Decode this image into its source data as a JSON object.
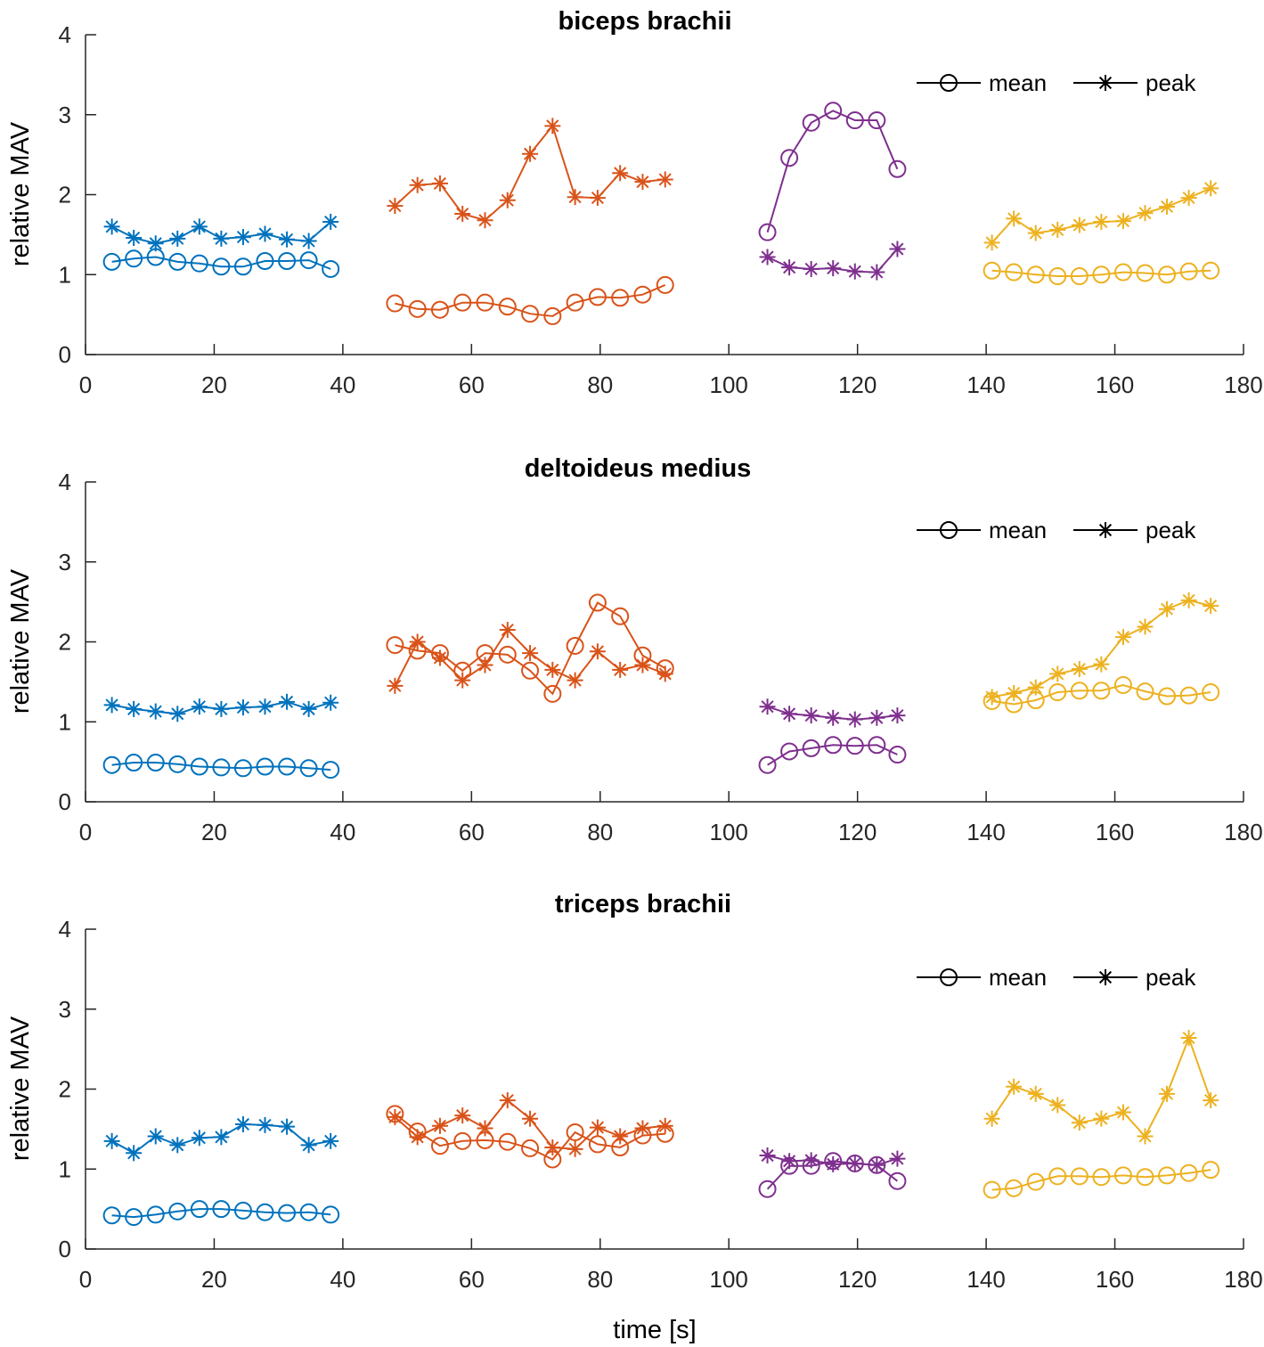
{
  "chart_data": {
    "type": "line",
    "xlabel": "time [s]",
    "xlim": [
      0,
      180
    ],
    "xticks": [
      0,
      20,
      40,
      60,
      80,
      100,
      120,
      140,
      160,
      180
    ],
    "ylim": [
      0,
      4
    ],
    "yticks": [
      0,
      1,
      2,
      3,
      4
    ],
    "segment_colors": [
      "#0072BD",
      "#D95319",
      "#7E2F8E",
      "#EDB120"
    ],
    "legend": {
      "position": "top-right",
      "entries": [
        {
          "label": "mean",
          "marker": "circle"
        },
        {
          "label": "peak",
          "marker": "asterisk"
        }
      ]
    },
    "panels": [
      {
        "title": "biceps brachii",
        "ylabel": "relative MAV",
        "segments": [
          {
            "x": [
              4.1,
              7.5,
              10.9,
              14.3,
              17.7,
              21.1,
              24.5,
              27.9,
              31.3,
              34.7,
              38.1
            ],
            "mean": [
              1.16,
              1.2,
              1.22,
              1.16,
              1.14,
              1.1,
              1.1,
              1.17,
              1.17,
              1.18,
              1.07
            ],
            "peak": [
              1.6,
              1.46,
              1.39,
              1.45,
              1.6,
              1.45,
              1.47,
              1.51,
              1.44,
              1.42,
              1.66
            ]
          },
          {
            "x": [
              48.1,
              51.6,
              55.1,
              58.6,
              62.1,
              65.6,
              69.1,
              72.6,
              76.1,
              79.6,
              83.1,
              86.6,
              90.1
            ],
            "mean": [
              0.64,
              0.57,
              0.56,
              0.65,
              0.65,
              0.6,
              0.51,
              0.48,
              0.65,
              0.72,
              0.71,
              0.75,
              0.87
            ],
            "peak": [
              1.86,
              2.12,
              2.14,
              1.76,
              1.68,
              1.93,
              2.51,
              2.86,
              1.97,
              1.96,
              2.27,
              2.16,
              2.19
            ]
          },
          {
            "x": [
              106.0,
              109.4,
              112.8,
              116.2,
              119.6,
              123.0,
              126.2
            ],
            "mean": [
              1.53,
              2.46,
              2.9,
              3.05,
              2.93,
              2.93,
              2.32
            ],
            "peak": [
              1.22,
              1.09,
              1.07,
              1.08,
              1.04,
              1.03,
              1.32
            ]
          },
          {
            "x": [
              140.9,
              144.3,
              147.7,
              151.1,
              154.5,
              157.9,
              161.3,
              164.7,
              168.1,
              171.5,
              174.9
            ],
            "mean": [
              1.05,
              1.03,
              1.0,
              0.98,
              0.98,
              1.0,
              1.03,
              1.02,
              1.0,
              1.04,
              1.05
            ],
            "peak": [
              1.4,
              1.7,
              1.52,
              1.56,
              1.62,
              1.66,
              1.67,
              1.77,
              1.85,
              1.96,
              2.08
            ]
          }
        ]
      },
      {
        "title": "deltoideus medius",
        "ylabel": "relative MAV",
        "segments": [
          {
            "x": [
              4.1,
              7.5,
              10.9,
              14.3,
              17.7,
              21.1,
              24.5,
              27.9,
              31.3,
              34.7,
              38.1
            ],
            "mean": [
              0.46,
              0.49,
              0.49,
              0.47,
              0.44,
              0.43,
              0.42,
              0.44,
              0.44,
              0.42,
              0.4
            ],
            "peak": [
              1.21,
              1.16,
              1.13,
              1.1,
              1.19,
              1.16,
              1.18,
              1.19,
              1.25,
              1.16,
              1.24
            ]
          },
          {
            "x": [
              48.1,
              51.6,
              55.1,
              58.6,
              62.1,
              65.6,
              69.1,
              72.6,
              76.1,
              79.6,
              83.1,
              86.6,
              90.1
            ],
            "mean": [
              1.96,
              1.89,
              1.86,
              1.64,
              1.86,
              1.84,
              1.64,
              1.35,
              1.95,
              2.49,
              2.32,
              1.83,
              1.67
            ],
            "peak": [
              1.45,
              2.0,
              1.8,
              1.52,
              1.71,
              2.15,
              1.86,
              1.65,
              1.52,
              1.88,
              1.65,
              1.71,
              1.6
            ]
          },
          {
            "x": [
              106.0,
              109.4,
              112.8,
              116.2,
              119.6,
              123.0,
              126.2
            ],
            "mean": [
              0.46,
              0.63,
              0.67,
              0.71,
              0.7,
              0.71,
              0.59
            ],
            "peak": [
              1.19,
              1.1,
              1.08,
              1.05,
              1.03,
              1.05,
              1.08
            ]
          },
          {
            "x": [
              140.9,
              144.3,
              147.7,
              151.1,
              154.5,
              157.9,
              161.3,
              164.7,
              168.1,
              171.5,
              174.9
            ],
            "mean": [
              1.26,
              1.22,
              1.27,
              1.37,
              1.39,
              1.39,
              1.46,
              1.38,
              1.32,
              1.33,
              1.37
            ],
            "peak": [
              1.31,
              1.36,
              1.43,
              1.6,
              1.66,
              1.72,
              2.06,
              2.19,
              2.41,
              2.52,
              2.45
            ]
          }
        ]
      },
      {
        "title": "triceps brachii",
        "ylabel": "relative MAV",
        "segments": [
          {
            "x": [
              4.1,
              7.5,
              10.9,
              14.3,
              17.7,
              21.1,
              24.5,
              27.9,
              31.3,
              34.7,
              38.1
            ],
            "mean": [
              0.42,
              0.4,
              0.43,
              0.47,
              0.5,
              0.5,
              0.48,
              0.46,
              0.45,
              0.46,
              0.43
            ],
            "peak": [
              1.35,
              1.2,
              1.41,
              1.3,
              1.39,
              1.4,
              1.56,
              1.55,
              1.53,
              1.3,
              1.35
            ]
          },
          {
            "x": [
              48.1,
              51.6,
              55.1,
              58.6,
              62.1,
              65.6,
              69.1,
              72.6,
              76.1,
              79.6,
              83.1,
              86.6,
              90.1
            ],
            "mean": [
              1.69,
              1.47,
              1.29,
              1.35,
              1.36,
              1.34,
              1.26,
              1.12,
              1.46,
              1.31,
              1.27,
              1.42,
              1.44
            ],
            "peak": [
              1.65,
              1.4,
              1.54,
              1.67,
              1.51,
              1.86,
              1.63,
              1.27,
              1.25,
              1.52,
              1.41,
              1.51,
              1.54
            ]
          },
          {
            "x": [
              106.0,
              109.4,
              112.8,
              116.2,
              119.6,
              123.0,
              126.2
            ],
            "mean": [
              0.75,
              1.04,
              1.04,
              1.1,
              1.07,
              1.05,
              0.85
            ],
            "peak": [
              1.17,
              1.1,
              1.11,
              1.06,
              1.07,
              1.05,
              1.13
            ]
          },
          {
            "x": [
              140.9,
              144.3,
              147.7,
              151.1,
              154.5,
              157.9,
              161.3,
              164.7,
              168.1,
              171.5,
              174.9
            ],
            "mean": [
              0.74,
              0.76,
              0.84,
              0.91,
              0.91,
              0.9,
              0.92,
              0.9,
              0.92,
              0.95,
              0.99
            ],
            "peak": [
              1.63,
              2.03,
              1.94,
              1.8,
              1.58,
              1.63,
              1.71,
              1.41,
              1.94,
              2.64,
              1.86
            ]
          }
        ]
      }
    ]
  }
}
